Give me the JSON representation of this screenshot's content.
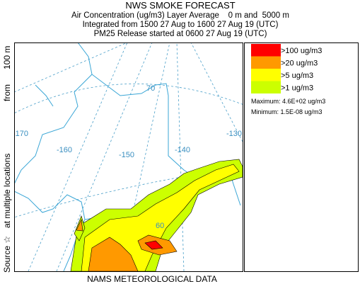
{
  "header": {
    "title": "NWS SMOKE FORECAST",
    "lines": [
      "Air Concentration (ug/m3) Layer Average    0 m and  5000 m",
      "Integrated from 1500 27 Aug to 1600 27 Aug 19 (UTC)",
      "PM25 Release started at 0600 27 Aug 19 (UTC)"
    ]
  },
  "side_label": [
    "Source ☆",
    "at multiple locations",
    "from",
    "100 m"
  ],
  "map_labels": {
    "longitudes": [
      "-170",
      "-160",
      "-150",
      "-140",
      "-130"
    ],
    "latitudes": [
      "70",
      "60"
    ]
  },
  "legend": {
    "items": [
      {
        "label": ">100 ug/m3",
        "color": "#ff0000"
      },
      {
        "label": ">20 ug/m3",
        "color": "#ff9900"
      },
      {
        "label": ">5 ug/m3",
        "color": "#ffff00"
      },
      {
        "label": ">1 ug/m3",
        "color": "#ccff00"
      }
    ],
    "maximum": "Maximum: 4.6E+02 ug/m3",
    "minimum": "Minimum: 1.5E-08 ug/m3"
  },
  "footer": "NAMS METEOROLOGICAL DATA"
}
